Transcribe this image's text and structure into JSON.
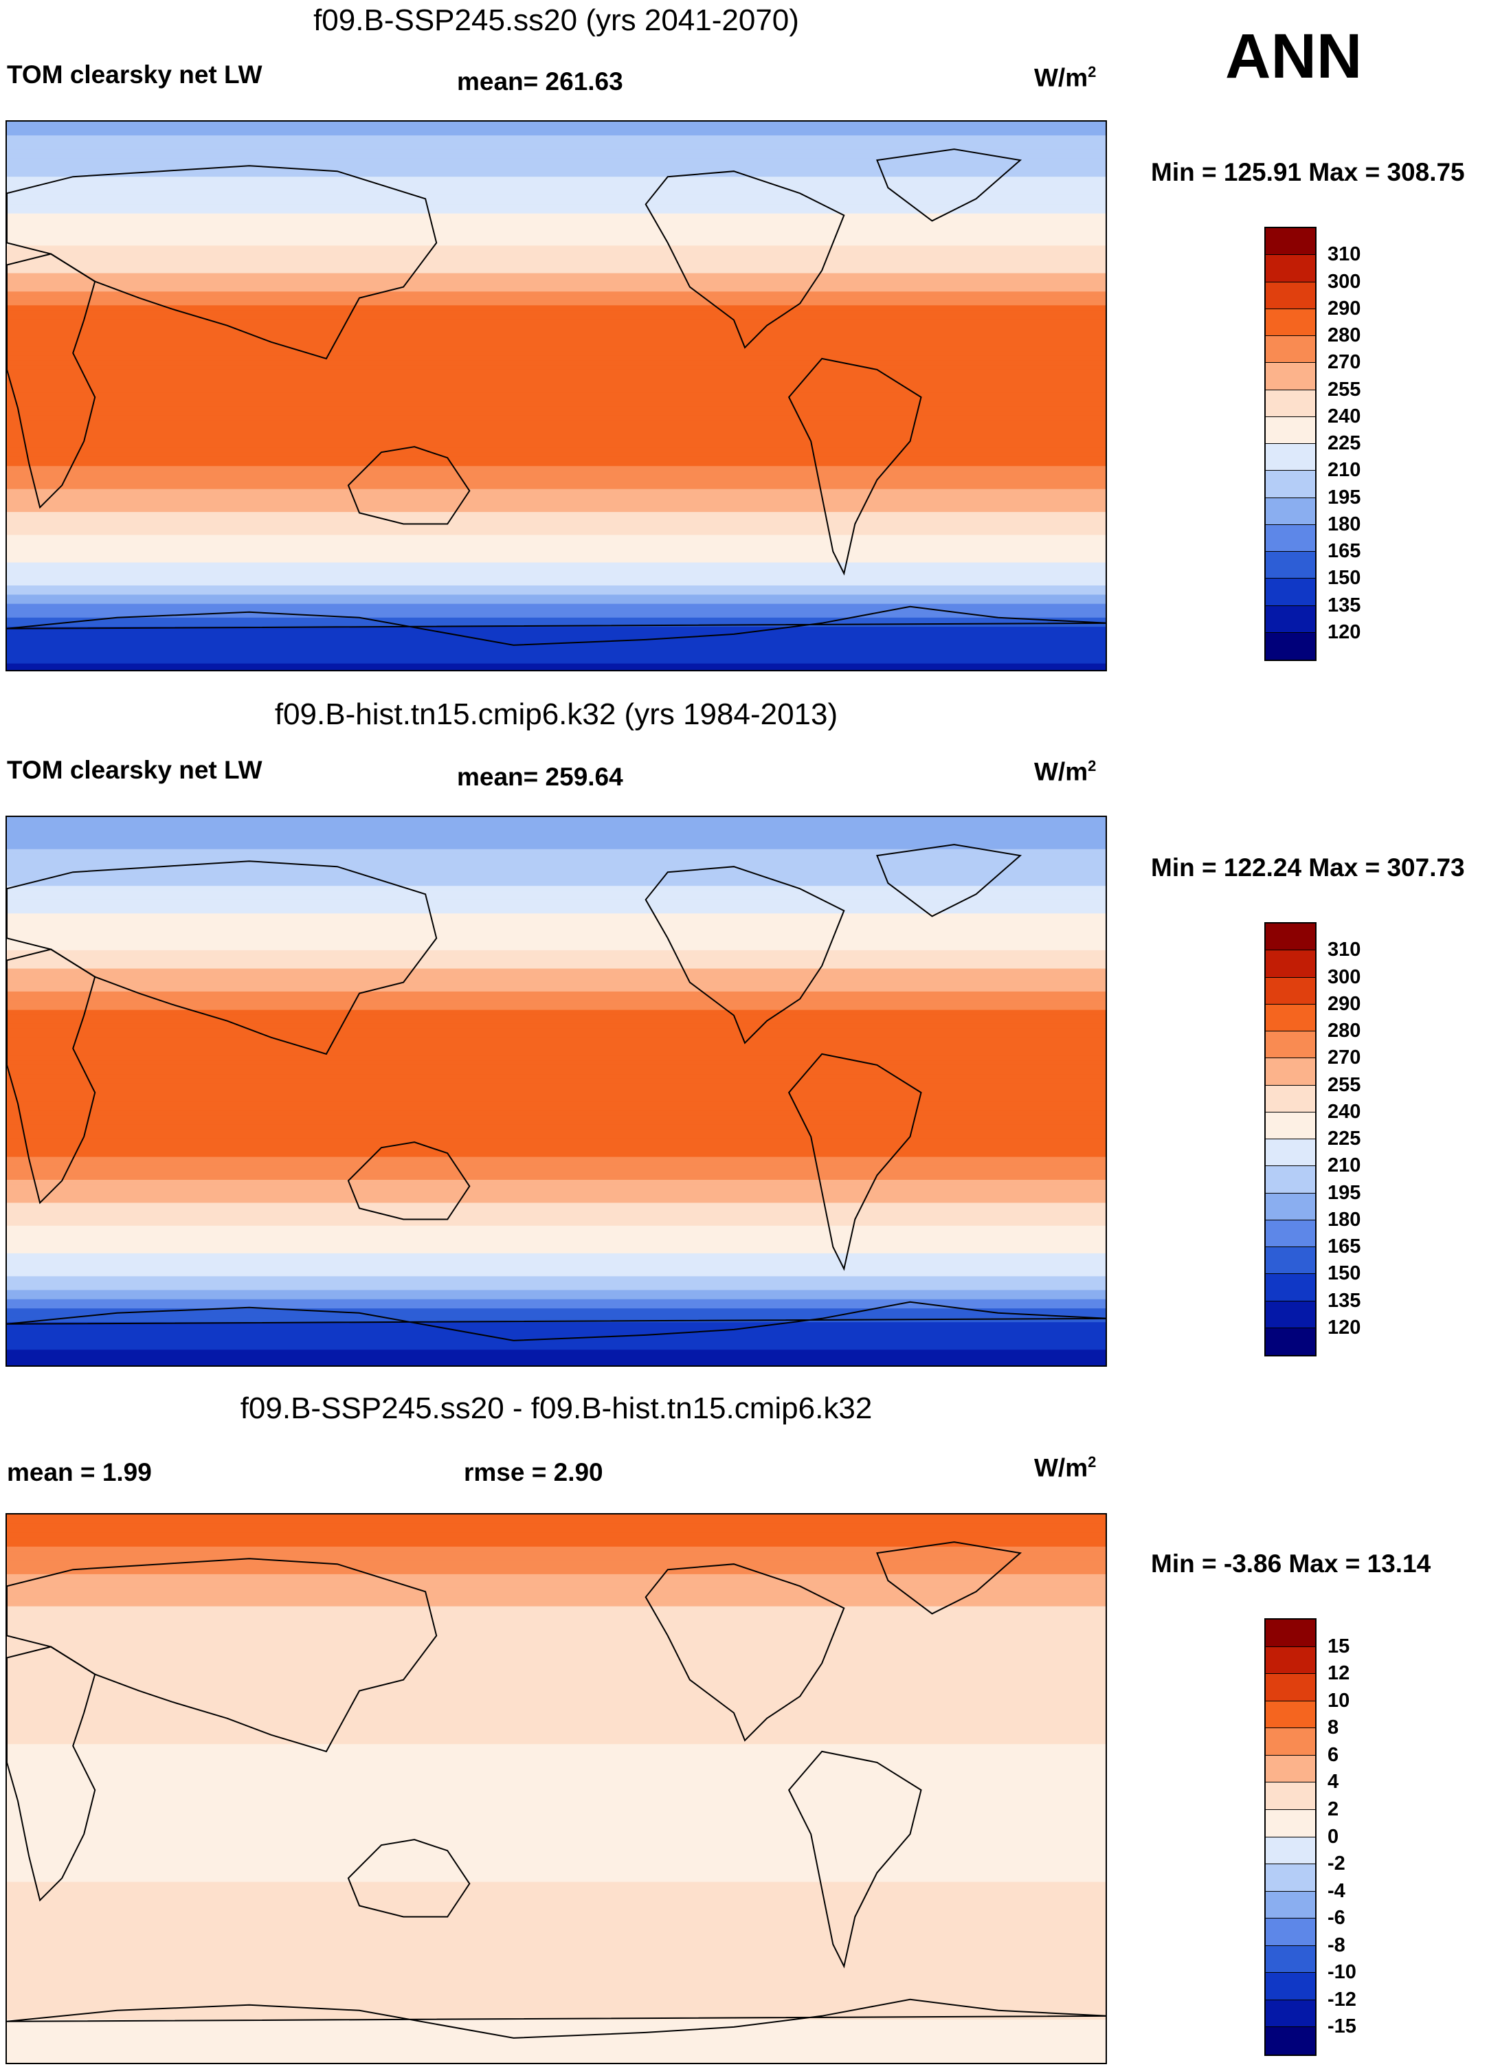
{
  "season": "ANN",
  "panels": [
    {
      "title": "f09.B-SSP245.ss20 (yrs 2041-2070)",
      "left_label": "TOM clearsky net LW",
      "center_label": "mean= 261.63",
      "units": "W/m",
      "units_sup": "2",
      "minmax": "Min = 125.91 Max = 308.75"
    },
    {
      "title": "f09.B-hist.tn15.cmip6.k32 (yrs 1984-2013)",
      "left_label": "TOM clearsky net LW",
      "center_label": "mean= 259.64",
      "units": "W/m",
      "units_sup": "2",
      "minmax": "Min = 122.24 Max = 307.73"
    },
    {
      "title": "f09.B-SSP245.ss20 - f09.B-hist.tn15.cmip6.k32",
      "left_label": "mean =   1.99",
      "center_label": "rmse =   2.90",
      "units": "W/m",
      "units_sup": "2",
      "minmax": "Min =  -3.86 Max =  13.14"
    }
  ],
  "chart_data": [
    {
      "type": "heatmap",
      "title": "f09.B-SSP245.ss20 (yrs 2041-2070)",
      "variable": "TOM clearsky net LW",
      "units": "W/m2",
      "mean": 261.63,
      "min": 125.91,
      "max": 308.75,
      "colorbar_levels": [
        310,
        300,
        290,
        280,
        270,
        255,
        240,
        225,
        210,
        195,
        180,
        165,
        150,
        135,
        120
      ],
      "colorbar_colors": [
        "#8b0000",
        "#c21d05",
        "#e0400e",
        "#f5651f",
        "#f98b52",
        "#fcb38b",
        "#fde0cc",
        "#fdf0e4",
        "#dde9fb",
        "#b4cdf7",
        "#8aaef0",
        "#5d87e8",
        "#2d5ed6",
        "#1038c6",
        "#0418a8",
        "#00007a"
      ],
      "zonal_profile_lat": [
        90,
        75,
        60,
        45,
        30,
        15,
        0,
        -15,
        -30,
        -45,
        -60,
        -75,
        -90
      ],
      "zonal_profile_value": [
        190,
        205,
        225,
        245,
        280,
        290,
        285,
        290,
        270,
        240,
        215,
        150,
        130
      ]
    },
    {
      "type": "heatmap",
      "title": "f09.B-hist.tn15.cmip6.k32 (yrs 1984-2013)",
      "variable": "TOM clearsky net LW",
      "units": "W/m2",
      "mean": 259.64,
      "min": 122.24,
      "max": 307.73,
      "colorbar_levels": [
        310,
        300,
        290,
        280,
        270,
        255,
        240,
        225,
        210,
        195,
        180,
        165,
        150,
        135,
        120
      ],
      "colorbar_colors": [
        "#8b0000",
        "#c21d05",
        "#e0400e",
        "#f5651f",
        "#f98b52",
        "#fcb38b",
        "#fde0cc",
        "#fdf0e4",
        "#dde9fb",
        "#b4cdf7",
        "#8aaef0",
        "#5d87e8",
        "#2d5ed6",
        "#1038c6",
        "#0418a8",
        "#00007a"
      ],
      "zonal_profile_lat": [
        90,
        75,
        60,
        45,
        30,
        15,
        0,
        -15,
        -30,
        -45,
        -60,
        -75,
        -90
      ],
      "zonal_profile_value": [
        185,
        200,
        222,
        243,
        278,
        288,
        283,
        288,
        268,
        238,
        212,
        147,
        128
      ]
    },
    {
      "type": "heatmap",
      "title": "f09.B-SSP245.ss20 - f09.B-hist.tn15.cmip6.k32",
      "units": "W/m2",
      "mean": 1.99,
      "rmse": 2.9,
      "min": -3.86,
      "max": 13.14,
      "colorbar_levels": [
        15,
        12,
        10,
        8,
        6,
        4,
        2,
        0,
        -2,
        -4,
        -6,
        -8,
        -10,
        -12,
        -15
      ],
      "colorbar_colors": [
        "#8b0000",
        "#c21d05",
        "#e0400e",
        "#f5651f",
        "#f98b52",
        "#fcb38b",
        "#fde0cc",
        "#fdf0e4",
        "#dde9fb",
        "#b4cdf7",
        "#8aaef0",
        "#5d87e8",
        "#2d5ed6",
        "#1038c6",
        "#0418a8",
        "#00007a"
      ],
      "zonal_profile_lat": [
        90,
        75,
        60,
        45,
        30,
        15,
        0,
        -15,
        -30,
        -45,
        -60,
        -75,
        -90
      ],
      "zonal_profile_value": [
        10,
        7,
        4,
        3,
        2,
        2,
        1,
        1,
        2,
        2,
        3,
        2,
        1
      ]
    }
  ]
}
